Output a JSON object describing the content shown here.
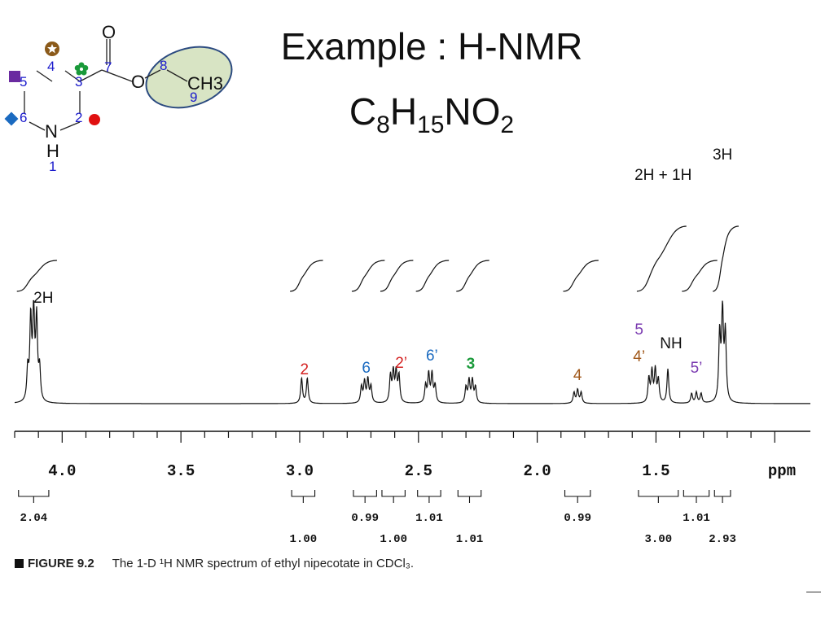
{
  "title": {
    "line1": "Example : H-NMR",
    "formula": [
      {
        "t": "C"
      },
      {
        "t": "8",
        "sub": true
      },
      {
        "t": "H"
      },
      {
        "t": "15",
        "sub": true
      },
      {
        "t": "NO"
      },
      {
        "t": "2",
        "sub": true
      }
    ]
  },
  "molecule": {
    "atoms": {
      "O_carbonyl": "O",
      "O_ester": "O",
      "N": "N",
      "NH_H": "H",
      "methyl": "CH3"
    },
    "numbers": [
      "1",
      "2",
      "3",
      "4",
      "5",
      "6",
      "7",
      "8",
      "9"
    ],
    "colors": {
      "number": "#1a1acc",
      "star": "#8b5a1a",
      "flower": "#1a9a3a",
      "square": "#6a2aa0",
      "diamond": "#1a6ac0",
      "dot": "#e01010",
      "ellipse_fill": "#d8e4c4",
      "ellipse_stroke": "#2b4a80"
    }
  },
  "caption": {
    "figure": "FIGURE 9.2",
    "text": "The 1-D ¹H NMR spectrum of ethyl nipecotate in CDCl₃."
  },
  "chart_data": {
    "type": "line",
    "xlabel": "ppm",
    "xlim": [
      4.2,
      0.85
    ],
    "x_reversed": true,
    "tick_labels": [
      {
        "v": 4.0,
        "label": "4.0"
      },
      {
        "v": 3.5,
        "label": "3.5"
      },
      {
        "v": 3.0,
        "label": "3.0"
      },
      {
        "v": 2.5,
        "label": "2.5"
      },
      {
        "v": 2.0,
        "label": "2.0"
      },
      {
        "v": 1.5,
        "label": "1.5"
      }
    ],
    "peaks": [
      {
        "ppm": 4.12,
        "height": 1.0,
        "lines": [
          -0.025,
          -0.0125,
          0,
          0.0125,
          0.025
        ],
        "intensities": [
          0.35,
          0.9,
          1.0,
          0.9,
          0.35
        ]
      },
      {
        "ppm": 2.98,
        "height": 0.28,
        "lines": [
          -0.012,
          0.012
        ],
        "intensities": [
          1.0,
          1.0
        ]
      },
      {
        "ppm": 2.72,
        "height": 0.26,
        "lines": [
          -0.02,
          -0.007,
          0.007,
          0.02
        ],
        "intensities": [
          0.7,
          1.0,
          0.9,
          0.7
        ]
      },
      {
        "ppm": 2.6,
        "height": 0.33,
        "lines": [
          -0.018,
          -0.006,
          0.006,
          0.018
        ],
        "intensities": [
          0.9,
          1.0,
          1.0,
          0.9
        ]
      },
      {
        "ppm": 2.45,
        "height": 0.32,
        "lines": [
          -0.02,
          -0.007,
          0.007,
          0.02
        ],
        "intensities": [
          0.6,
          1.0,
          1.0,
          0.6
        ]
      },
      {
        "ppm": 2.28,
        "height": 0.25,
        "lines": [
          -0.02,
          -0.007,
          0.007,
          0.02
        ],
        "intensities": [
          0.7,
          1.0,
          1.0,
          0.7
        ]
      },
      {
        "ppm": 1.83,
        "height": 0.15,
        "lines": [
          -0.015,
          0,
          0.015
        ],
        "intensities": [
          0.8,
          1.0,
          0.8
        ]
      },
      {
        "ppm": 1.51,
        "height": 0.36,
        "lines": [
          -0.02,
          -0.007,
          0.007,
          0.02
        ],
        "intensities": [
          0.7,
          1.0,
          0.95,
          0.75
        ]
      },
      {
        "ppm": 1.45,
        "height": 0.38,
        "lines": [
          0
        ],
        "intensities": [
          1.0
        ]
      },
      {
        "ppm": 1.33,
        "height": 0.12,
        "lines": [
          -0.02,
          0,
          0.02
        ],
        "intensities": [
          0.9,
          1.0,
          0.9
        ]
      },
      {
        "ppm": 1.22,
        "height": 1.0,
        "lines": [
          -0.012,
          0,
          0.012
        ],
        "intensities": [
          0.75,
          1.0,
          0.75
        ]
      }
    ],
    "integral_steps": [
      {
        "from": 4.17,
        "to": 4.07,
        "rise": 1.0
      },
      {
        "from": 3.02,
        "to": 2.95,
        "rise": 0.45
      },
      {
        "from": 2.76,
        "to": 2.69,
        "rise": 0.45
      },
      {
        "from": 2.64,
        "to": 2.57,
        "rise": 0.45
      },
      {
        "from": 2.49,
        "to": 2.42,
        "rise": 0.45
      },
      {
        "from": 2.32,
        "to": 2.25,
        "rise": 0.45
      },
      {
        "from": 1.87,
        "to": 1.79,
        "rise": 0.45
      },
      {
        "from": 1.56,
        "to": 1.42,
        "rise": 1.3
      },
      {
        "from": 1.37,
        "to": 1.29,
        "rise": 0.45
      },
      {
        "from": 1.24,
        "to": 1.2,
        "rise": 1.3
      }
    ],
    "peak_labels": [
      {
        "text": "2H",
        "ppm": 4.12,
        "color": "#111111"
      },
      {
        "text": "2",
        "ppm": 2.98,
        "color": "#d42020"
      },
      {
        "text": "6",
        "ppm": 2.72,
        "color": "#1a6ac0"
      },
      {
        "text": "2’",
        "ppm": 2.6,
        "color": "#d42020"
      },
      {
        "text": "6’",
        "ppm": 2.45,
        "color": "#1a6ac0"
      },
      {
        "text": "3",
        "ppm": 2.28,
        "color": "#1a9a3a",
        "bold": true
      },
      {
        "text": "4",
        "ppm": 1.83,
        "color": "#a0581a"
      },
      {
        "text": "5",
        "ppm": 1.53,
        "color": "#7a3ab0"
      },
      {
        "text": "4’",
        "ppm": 1.53,
        "color": "#a0581a"
      },
      {
        "text": "NH",
        "ppm": 1.45,
        "color": "#111111"
      },
      {
        "text": "5’",
        "ppm": 1.33,
        "color": "#7a3ab0"
      },
      {
        "text": "2H + 1H",
        "ppm": 1.47,
        "color": "#111111"
      },
      {
        "text": "3H",
        "ppm": 1.22,
        "color": "#111111"
      }
    ],
    "integration_values": [
      {
        "text": "2.04",
        "from": 4.17,
        "to": 4.07,
        "row": 1
      },
      {
        "text": "1.00",
        "from": 3.02,
        "to": 2.95,
        "row": 2
      },
      {
        "text": "0.99",
        "from": 2.76,
        "to": 2.69,
        "row": 1
      },
      {
        "text": "1.00",
        "from": 2.64,
        "to": 2.57,
        "row": 2
      },
      {
        "text": "1.01",
        "from": 2.49,
        "to": 2.42,
        "row": 1
      },
      {
        "text": "1.01",
        "from": 2.32,
        "to": 2.25,
        "row": 2
      },
      {
        "text": "0.99",
        "from": 1.87,
        "to": 1.79,
        "row": 1
      },
      {
        "text": "3.00",
        "from": 1.56,
        "to": 1.42,
        "row": 2
      },
      {
        "text": "1.01",
        "from": 1.37,
        "to": 1.29,
        "row": 1
      },
      {
        "text": "2.93",
        "from": 1.24,
        "to": 1.2,
        "row": 2
      }
    ]
  }
}
